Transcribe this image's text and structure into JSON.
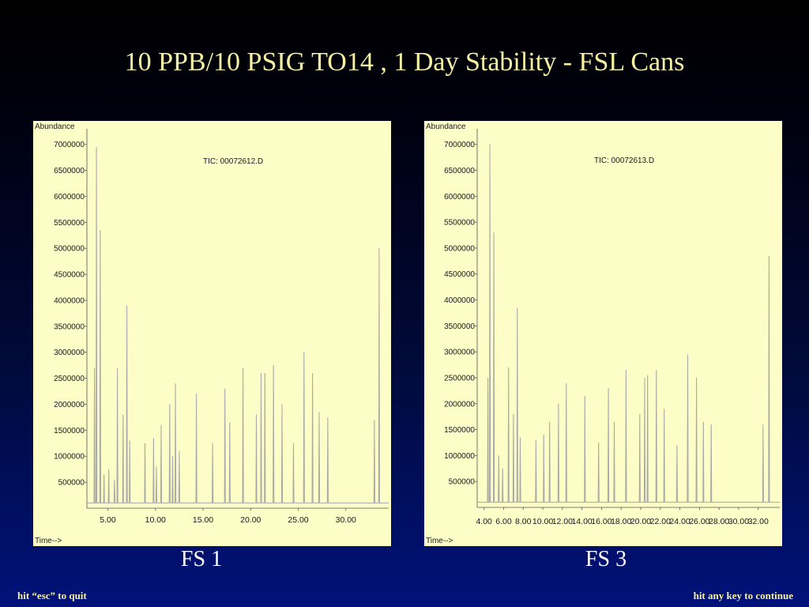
{
  "title": "10 PPB/10 PSIG TO14 , 1 Day Stability - FSL Cans",
  "footer": {
    "left": "hit “esc” to quit",
    "right": "hit any key to continue"
  },
  "colors": {
    "title": "#f7f1a4",
    "panel_bg": "#fdfdc8",
    "trace": "#a8a8a8",
    "axis": "#555555"
  },
  "chart_data": [
    {
      "type": "line",
      "caption": "FS 1",
      "ylabel": "Abundance",
      "xlabel": "Time-->",
      "annotation": "TIC: 00072612.D",
      "yticks": [
        500000,
        1000000,
        1500000,
        2000000,
        2500000,
        3000000,
        3500000,
        4000000,
        4500000,
        5000000,
        5500000,
        6000000,
        6500000,
        7000000
      ],
      "ytick_labels": [
        "500000",
        "1000000",
        "1500000",
        "2000000",
        "2500000",
        "3000000",
        "3500000",
        "4000000",
        "4500000",
        "5000000",
        "5500000",
        "6000000",
        "6500000",
        "7000000"
      ],
      "xticks": [
        5,
        10,
        15,
        20,
        25,
        30
      ],
      "xtick_labels": [
        "5.00",
        "10.00",
        "15.00",
        "20.00",
        "25.00",
        "30.00"
      ],
      "xlim": [
        2.8,
        34.5
      ],
      "ylim": [
        0,
        7300000
      ],
      "baseline": 100000,
      "peaks": [
        {
          "x": 3.6,
          "y": 2700000
        },
        {
          "x": 3.8,
          "y": 6950000
        },
        {
          "x": 4.2,
          "y": 5350000
        },
        {
          "x": 4.6,
          "y": 650000
        },
        {
          "x": 5.1,
          "y": 750000
        },
        {
          "x": 5.7,
          "y": 550000
        },
        {
          "x": 6.0,
          "y": 2700000
        },
        {
          "x": 6.6,
          "y": 1800000
        },
        {
          "x": 7.0,
          "y": 3900000
        },
        {
          "x": 7.3,
          "y": 1300000
        },
        {
          "x": 8.9,
          "y": 1250000
        },
        {
          "x": 9.8,
          "y": 1350000
        },
        {
          "x": 10.1,
          "y": 800000
        },
        {
          "x": 10.6,
          "y": 1600000
        },
        {
          "x": 11.5,
          "y": 2000000
        },
        {
          "x": 11.8,
          "y": 1000000
        },
        {
          "x": 12.1,
          "y": 2400000
        },
        {
          "x": 12.5,
          "y": 1100000
        },
        {
          "x": 14.3,
          "y": 2200000
        },
        {
          "x": 16.0,
          "y": 1250000
        },
        {
          "x": 17.3,
          "y": 2300000
        },
        {
          "x": 17.8,
          "y": 1650000
        },
        {
          "x": 19.2,
          "y": 2700000
        },
        {
          "x": 20.6,
          "y": 1800000
        },
        {
          "x": 21.1,
          "y": 2600000
        },
        {
          "x": 21.5,
          "y": 2600000
        },
        {
          "x": 22.4,
          "y": 2750000
        },
        {
          "x": 23.3,
          "y": 2000000
        },
        {
          "x": 24.5,
          "y": 1250000
        },
        {
          "x": 25.6,
          "y": 3000000
        },
        {
          "x": 26.5,
          "y": 2600000
        },
        {
          "x": 27.2,
          "y": 1850000
        },
        {
          "x": 28.1,
          "y": 1750000
        },
        {
          "x": 33.0,
          "y": 1700000
        },
        {
          "x": 33.5,
          "y": 5000000
        }
      ]
    },
    {
      "type": "line",
      "caption": "FS 3",
      "ylabel": "Abundance",
      "xlabel": "Time-->",
      "annotation": "TIC: 00072613.D",
      "yticks": [
        500000,
        1000000,
        1500000,
        2000000,
        2500000,
        3000000,
        3500000,
        4000000,
        4500000,
        5000000,
        5500000,
        6000000,
        6500000,
        7000000
      ],
      "ytick_labels": [
        "500000",
        "1000000",
        "1500000",
        "2000000",
        "2500000",
        "3000000",
        "3500000",
        "4000000",
        "4500000",
        "5000000",
        "5500000",
        "6000000",
        "6500000",
        "7000000"
      ],
      "xticks": [
        4,
        6,
        8,
        10,
        12,
        14,
        16,
        18,
        20,
        22,
        24,
        26,
        28,
        30,
        32
      ],
      "xtick_labels": [
        "4.00",
        "6.00",
        "8.00",
        "10.00",
        "12.00",
        "14.00",
        "16.00",
        "18.00",
        "20.00",
        "22.00",
        "24.00",
        "26.00",
        "28.00",
        "30.00",
        "32.00"
      ],
      "xlim": [
        3.3,
        34.2
      ],
      "ylim": [
        0,
        7300000
      ],
      "baseline": 100000,
      "peaks": [
        {
          "x": 4.4,
          "y": 2500000
        },
        {
          "x": 4.6,
          "y": 7000000
        },
        {
          "x": 5.0,
          "y": 5300000
        },
        {
          "x": 5.5,
          "y": 1000000
        },
        {
          "x": 5.9,
          "y": 750000
        },
        {
          "x": 6.5,
          "y": 2700000
        },
        {
          "x": 7.0,
          "y": 1800000
        },
        {
          "x": 7.4,
          "y": 3850000
        },
        {
          "x": 7.7,
          "y": 1350000
        },
        {
          "x": 9.3,
          "y": 1300000
        },
        {
          "x": 10.1,
          "y": 1400000
        },
        {
          "x": 10.7,
          "y": 1650000
        },
        {
          "x": 11.6,
          "y": 2000000
        },
        {
          "x": 12.4,
          "y": 2400000
        },
        {
          "x": 14.3,
          "y": 2150000
        },
        {
          "x": 15.7,
          "y": 1250000
        },
        {
          "x": 16.7,
          "y": 2300000
        },
        {
          "x": 17.3,
          "y": 1650000
        },
        {
          "x": 18.5,
          "y": 2650000
        },
        {
          "x": 19.9,
          "y": 1800000
        },
        {
          "x": 20.4,
          "y": 2500000
        },
        {
          "x": 20.7,
          "y": 2550000
        },
        {
          "x": 21.6,
          "y": 2650000
        },
        {
          "x": 22.4,
          "y": 1900000
        },
        {
          "x": 23.7,
          "y": 1200000
        },
        {
          "x": 24.8,
          "y": 2950000
        },
        {
          "x": 25.7,
          "y": 2500000
        },
        {
          "x": 26.4,
          "y": 1650000
        },
        {
          "x": 27.2,
          "y": 1600000
        },
        {
          "x": 32.5,
          "y": 1600000
        },
        {
          "x": 33.1,
          "y": 4850000
        }
      ]
    }
  ]
}
